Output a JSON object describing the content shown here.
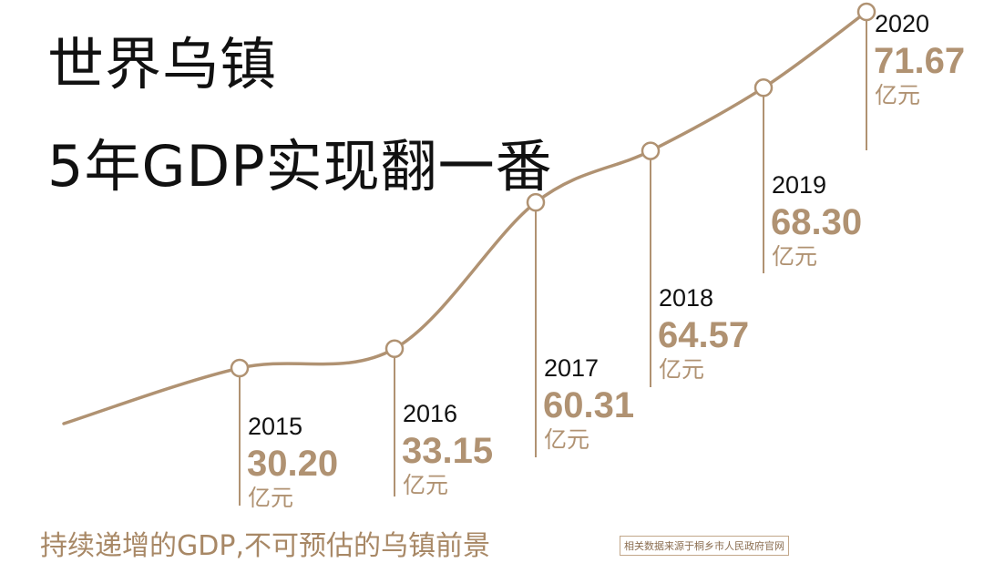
{
  "title": {
    "line1": "世界乌镇",
    "line2": "5年GDP实现翻一番"
  },
  "footer": {
    "tagline": "持续递增的GDP,不可预估的乌镇前景",
    "source": "相关数据来源于桐乡市人民政府官网"
  },
  "colors": {
    "accent": "#b09272",
    "title": "#111111",
    "year_text": "#111111"
  },
  "chart_data": {
    "type": "line",
    "title": "5年GDP实现翻一番",
    "x": [
      "2015",
      "2016",
      "2017",
      "2018",
      "2019",
      "2020"
    ],
    "series": [
      {
        "values": [
          30.2,
          33.15,
          60.31,
          64.57,
          68.3,
          71.67
        ],
        "value_labels": [
          "30.20",
          "33.15",
          "60.31",
          "64.57",
          "68.30",
          "71.67"
        ]
      }
    ],
    "unit": "亿元",
    "grid": false,
    "axes_visible": false
  }
}
